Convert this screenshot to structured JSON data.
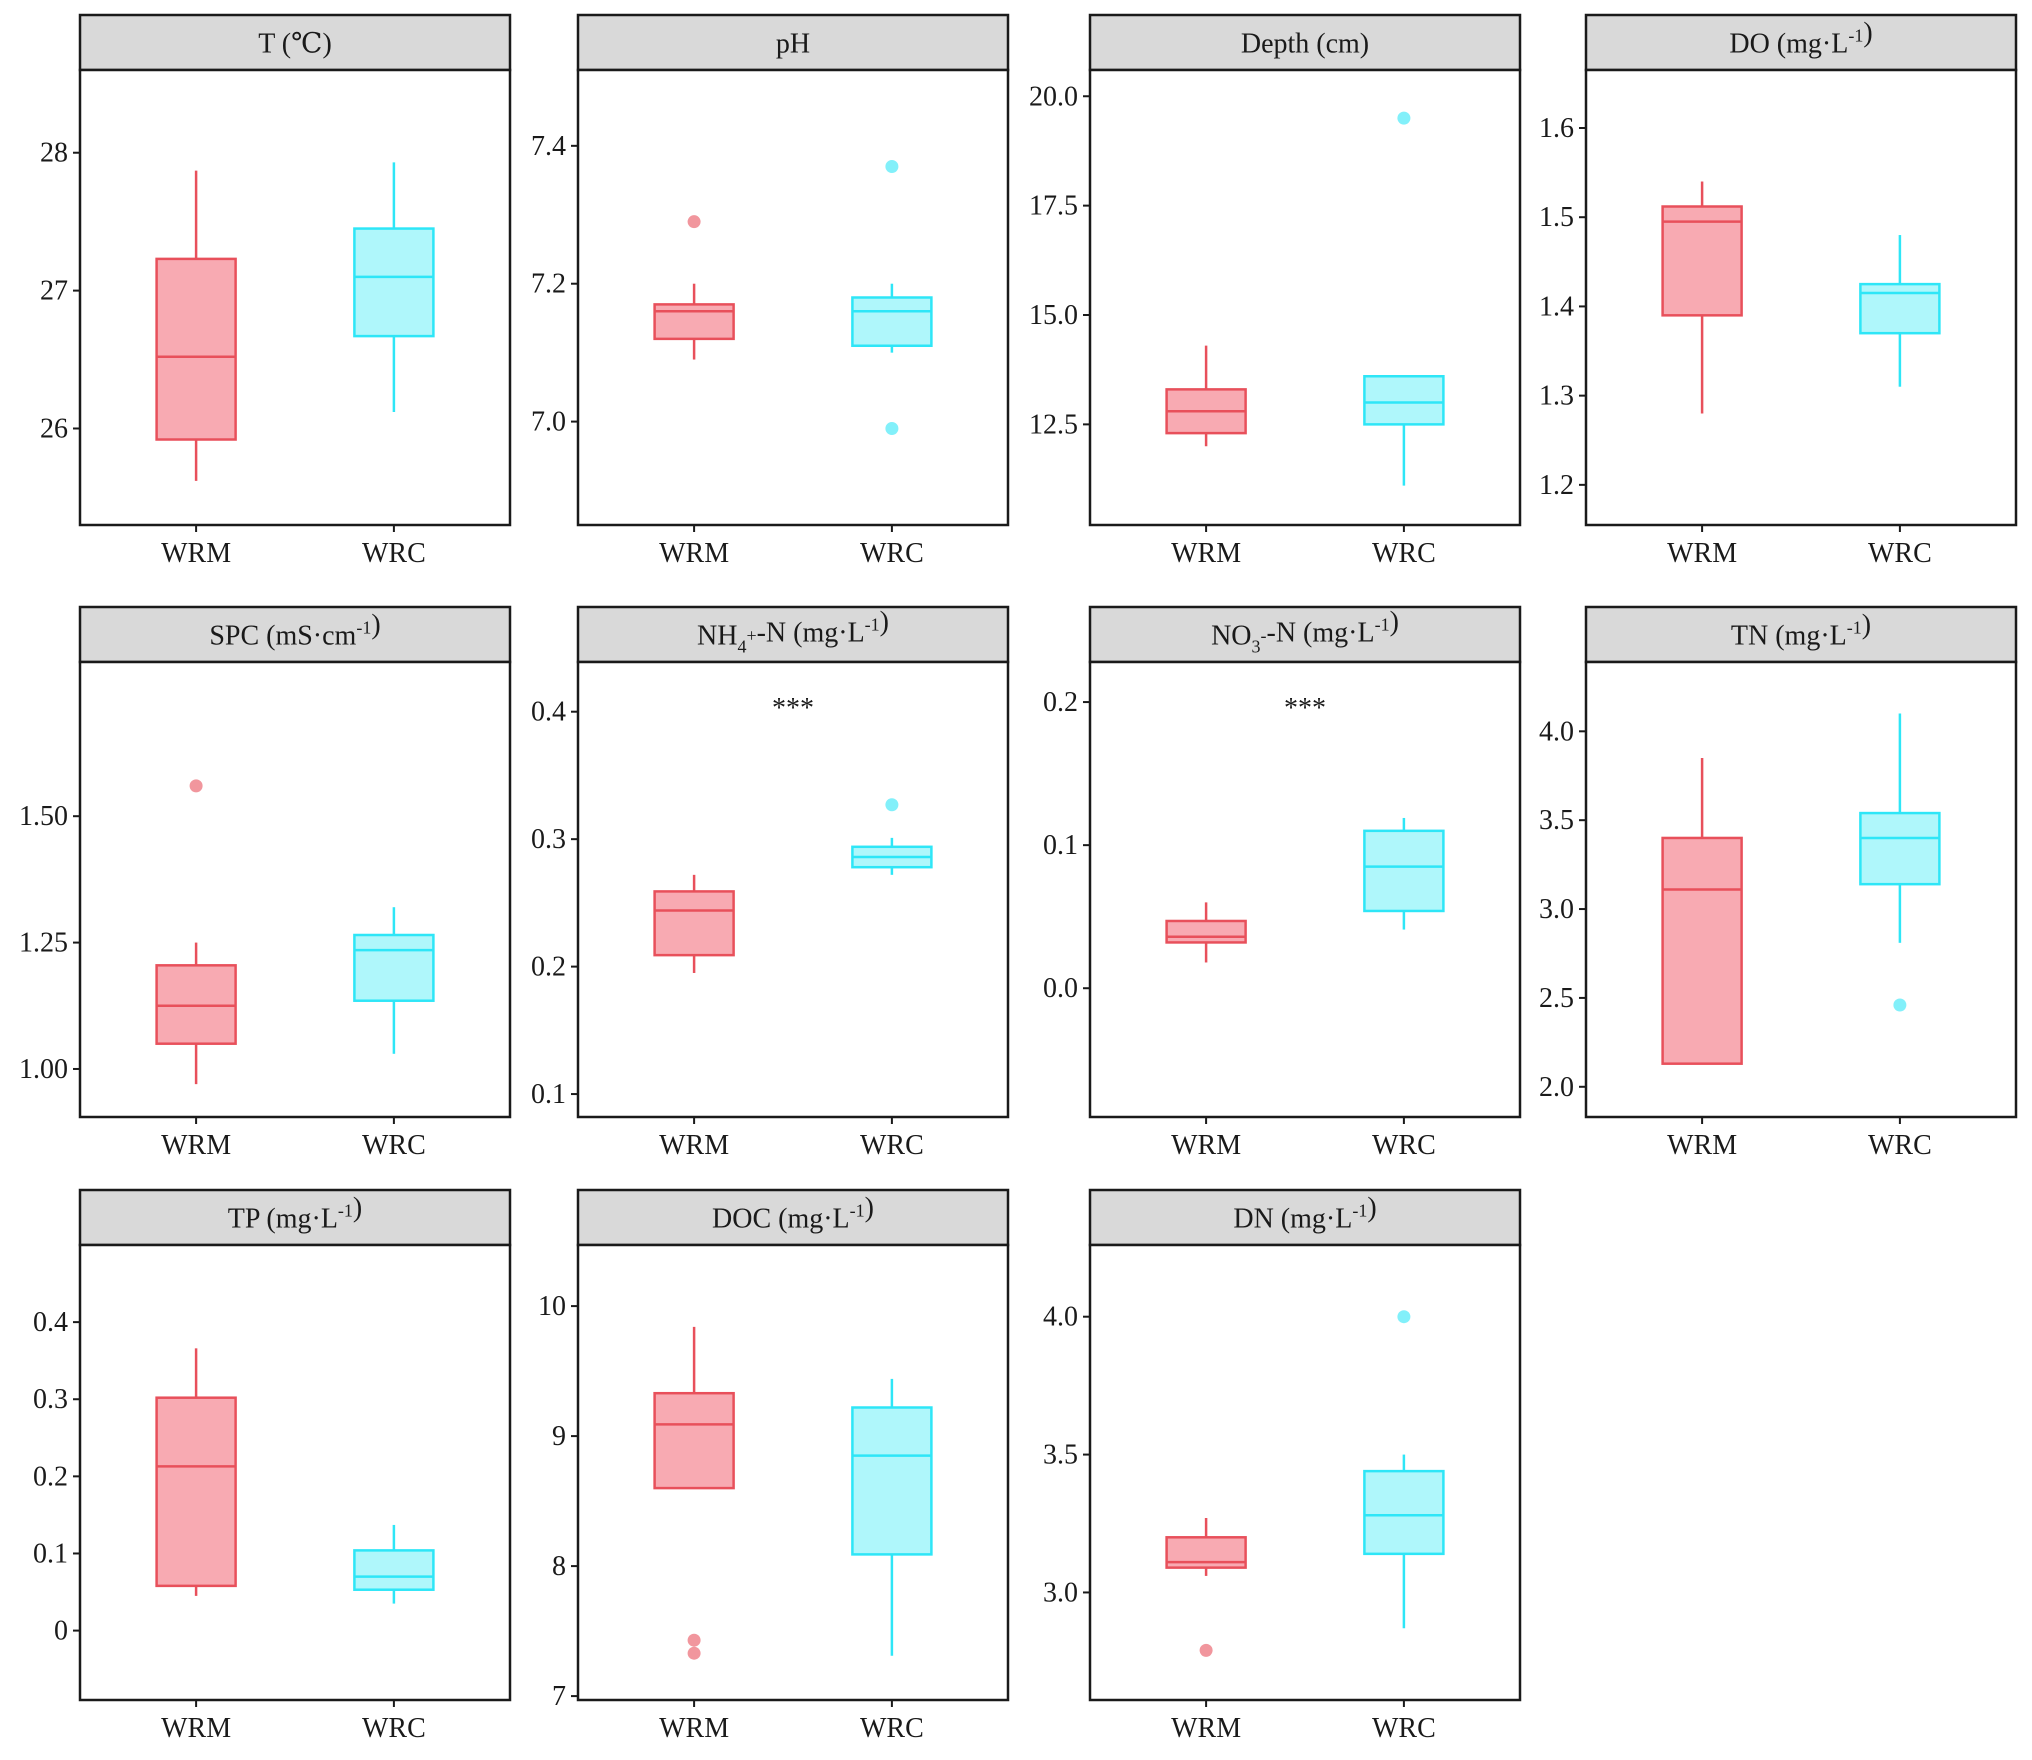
{
  "chart_data": [
    {
      "type": "boxplot",
      "title": "T (℃)",
      "title_parts": [
        {
          "t": "T (℃)"
        }
      ],
      "categories": [
        "WRM",
        "WRC"
      ],
      "ylim": [
        25.3,
        28.6
      ],
      "yticks": [
        26,
        27,
        28
      ],
      "ytick_labels": [
        "26",
        "27",
        "28"
      ],
      "significance": "",
      "boxes": [
        {
          "group": "WRM",
          "whisker_low": 25.62,
          "q1": 25.92,
          "median": 26.52,
          "q3": 27.23,
          "whisker_high": 27.87,
          "outliers": []
        },
        {
          "group": "WRC",
          "whisker_low": 26.12,
          "q1": 26.67,
          "median": 27.1,
          "q3": 27.45,
          "whisker_high": 27.93,
          "outliers": []
        }
      ]
    },
    {
      "type": "boxplot",
      "title": "pH",
      "title_parts": [
        {
          "t": "pH"
        }
      ],
      "categories": [
        "WRM",
        "WRC"
      ],
      "ylim": [
        6.85,
        7.51
      ],
      "yticks": [
        7.0,
        7.2,
        7.4
      ],
      "ytick_labels": [
        "7.0",
        "7.2",
        "7.4"
      ],
      "significance": "",
      "boxes": [
        {
          "group": "WRM",
          "whisker_low": 7.09,
          "q1": 7.12,
          "median": 7.16,
          "q3": 7.17,
          "whisker_high": 7.2,
          "outliers": [
            7.29
          ]
        },
        {
          "group": "WRC",
          "whisker_low": 7.1,
          "q1": 7.11,
          "median": 7.16,
          "q3": 7.18,
          "whisker_high": 7.2,
          "outliers": [
            7.37,
            6.99
          ]
        }
      ]
    },
    {
      "type": "boxplot",
      "title": "Depth (cm)",
      "title_parts": [
        {
          "t": "Depth (cm)"
        }
      ],
      "categories": [
        "WRM",
        "WRC"
      ],
      "ylim": [
        10.2,
        20.6
      ],
      "yticks": [
        12.5,
        15.0,
        17.5,
        20.0
      ],
      "ytick_labels": [
        "12.5",
        "15.0",
        "17.5",
        "20.0"
      ],
      "significance": "",
      "boxes": [
        {
          "group": "WRM",
          "whisker_low": 12.0,
          "q1": 12.3,
          "median": 12.8,
          "q3": 13.3,
          "whisker_high": 14.3,
          "outliers": []
        },
        {
          "group": "WRC",
          "whisker_low": 11.1,
          "q1": 12.5,
          "median": 13.0,
          "q3": 13.6,
          "whisker_high": 13.6,
          "outliers": [
            19.5
          ]
        }
      ]
    },
    {
      "type": "boxplot",
      "title": "DO (mg·L-1)",
      "title_parts": [
        {
          "t": "DO (mg·L"
        },
        {
          "t": "-1",
          "sup": true
        },
        {
          "t": ")"
        }
      ],
      "categories": [
        "WRM",
        "WRC"
      ],
      "ylim": [
        1.155,
        1.665
      ],
      "yticks": [
        1.2,
        1.3,
        1.4,
        1.5,
        1.6
      ],
      "ytick_labels": [
        "1.2",
        "1.3",
        "1.4",
        "1.5",
        "1.6"
      ],
      "significance": "",
      "boxes": [
        {
          "group": "WRM",
          "whisker_low": 1.28,
          "q1": 1.39,
          "median": 1.495,
          "q3": 1.512,
          "whisker_high": 1.54,
          "outliers": []
        },
        {
          "group": "WRC",
          "whisker_low": 1.31,
          "q1": 1.37,
          "median": 1.415,
          "q3": 1.425,
          "whisker_high": 1.48,
          "outliers": []
        }
      ]
    },
    {
      "type": "boxplot",
      "title": "SPC (mS·cm-1)",
      "title_parts": [
        {
          "t": "SPC (mS·cm"
        },
        {
          "t": "-1",
          "sup": true
        },
        {
          "t": ")"
        }
      ],
      "categories": [
        "WRM",
        "WRC"
      ],
      "ylim": [
        0.905,
        1.805
      ],
      "yticks": [
        1.0,
        1.25,
        1.5
      ],
      "ytick_labels": [
        "1.00",
        "1.25",
        "1.50"
      ],
      "significance": "",
      "boxes": [
        {
          "group": "WRM",
          "whisker_low": 0.97,
          "q1": 1.05,
          "median": 1.125,
          "q3": 1.205,
          "whisker_high": 1.25,
          "outliers": [
            1.56
          ]
        },
        {
          "group": "WRC",
          "whisker_low": 1.03,
          "q1": 1.135,
          "median": 1.235,
          "q3": 1.265,
          "whisker_high": 1.32,
          "outliers": []
        }
      ]
    },
    {
      "type": "boxplot",
      "title": "NH4+-N (mg·L-1)",
      "title_parts": [
        {
          "t": "NH"
        },
        {
          "t": "4",
          "sub": true
        },
        {
          "t": "+",
          "sup": true
        },
        {
          "t": "-N (mg·L"
        },
        {
          "t": "-1",
          "sup": true
        },
        {
          "t": ")"
        }
      ],
      "categories": [
        "WRM",
        "WRC"
      ],
      "ylim": [
        0.082,
        0.439
      ],
      "yticks": [
        0.1,
        0.2,
        0.3,
        0.4
      ],
      "ytick_labels": [
        "0.1",
        "0.2",
        "0.3",
        "0.4"
      ],
      "significance": "***",
      "boxes": [
        {
          "group": "WRM",
          "whisker_low": 0.195,
          "q1": 0.209,
          "median": 0.244,
          "q3": 0.259,
          "whisker_high": 0.272,
          "outliers": []
        },
        {
          "group": "WRC",
          "whisker_low": 0.272,
          "q1": 0.278,
          "median": 0.286,
          "q3": 0.294,
          "whisker_high": 0.301,
          "outliers": [
            0.327
          ]
        }
      ]
    },
    {
      "type": "boxplot",
      "title": "NO3--N (mg·L-1)",
      "title_parts": [
        {
          "t": "NO"
        },
        {
          "t": "3",
          "sub": true
        },
        {
          "t": "-",
          "sup": true
        },
        {
          "t": "-N (mg·L"
        },
        {
          "t": "-1",
          "sup": true
        },
        {
          "t": ")"
        }
      ],
      "categories": [
        "WRM",
        "WRC"
      ],
      "ylim": [
        -0.09,
        0.228
      ],
      "yticks": [
        0.0,
        0.1,
        0.2
      ],
      "ytick_labels": [
        "0.0",
        "0.1",
        "0.2"
      ],
      "significance": "***",
      "boxes": [
        {
          "group": "WRM",
          "whisker_low": 0.018,
          "q1": 0.032,
          "median": 0.036,
          "q3": 0.047,
          "whisker_high": 0.06,
          "outliers": []
        },
        {
          "group": "WRC",
          "whisker_low": 0.041,
          "q1": 0.054,
          "median": 0.085,
          "q3": 0.11,
          "whisker_high": 0.119,
          "outliers": []
        }
      ]
    },
    {
      "type": "boxplot",
      "title": "TN (mg·L-1)",
      "title_parts": [
        {
          "t": "TN (mg·L"
        },
        {
          "t": "-1",
          "sup": true
        },
        {
          "t": ")"
        }
      ],
      "categories": [
        "WRM",
        "WRC"
      ],
      "ylim": [
        1.83,
        4.39
      ],
      "yticks": [
        2.0,
        2.5,
        3.0,
        3.5,
        4.0
      ],
      "ytick_labels": [
        "2.0",
        "2.5",
        "3.0",
        "3.5",
        "4.0"
      ],
      "significance": "",
      "boxes": [
        {
          "group": "WRM",
          "whisker_low": 2.13,
          "q1": 2.13,
          "median": 3.11,
          "q3": 3.4,
          "whisker_high": 3.85,
          "outliers": []
        },
        {
          "group": "WRC",
          "whisker_low": 2.81,
          "q1": 3.14,
          "median": 3.4,
          "q3": 3.54,
          "whisker_high": 4.1,
          "outliers": [
            2.46
          ]
        }
      ]
    },
    {
      "type": "boxplot",
      "title": "TP (mg·L-1)",
      "title_parts": [
        {
          "t": "TP (mg·L"
        },
        {
          "t": "-1",
          "sup": true
        },
        {
          "t": ")"
        }
      ],
      "categories": [
        "WRM",
        "WRC"
      ],
      "ylim": [
        -0.09,
        0.5
      ],
      "yticks": [
        0,
        0.1,
        0.2,
        0.3,
        0.4
      ],
      "ytick_labels": [
        "0",
        "0.1",
        "0.2",
        "0.3",
        "0.4"
      ],
      "significance": "",
      "boxes": [
        {
          "group": "WRM",
          "whisker_low": 0.045,
          "q1": 0.058,
          "median": 0.213,
          "q3": 0.302,
          "whisker_high": 0.366,
          "outliers": []
        },
        {
          "group": "WRC",
          "whisker_low": 0.035,
          "q1": 0.053,
          "median": 0.07,
          "q3": 0.104,
          "whisker_high": 0.137,
          "outliers": []
        }
      ]
    },
    {
      "type": "boxplot",
      "title": "DOC (mg·L-1)",
      "title_parts": [
        {
          "t": "DOC (mg·L"
        },
        {
          "t": "-1",
          "sup": true
        },
        {
          "t": ")"
        }
      ],
      "categories": [
        "WRM",
        "WRC"
      ],
      "ylim": [
        6.97,
        10.47
      ],
      "yticks": [
        7,
        8,
        9,
        10
      ],
      "ytick_labels": [
        "7",
        "8",
        "9",
        "10"
      ],
      "significance": "",
      "boxes": [
        {
          "group": "WRM",
          "whisker_low": 8.6,
          "q1": 8.6,
          "median": 9.09,
          "q3": 9.33,
          "whisker_high": 9.84,
          "outliers": [
            7.43,
            7.33
          ]
        },
        {
          "group": "WRC",
          "whisker_low": 7.31,
          "q1": 8.09,
          "median": 8.85,
          "q3": 9.22,
          "whisker_high": 9.44,
          "outliers": []
        }
      ]
    },
    {
      "type": "boxplot",
      "title": "DN (mg·L-1)",
      "title_parts": [
        {
          "t": "DN (mg·L"
        },
        {
          "t": "-1",
          "sup": true
        },
        {
          "t": ")"
        }
      ],
      "categories": [
        "WRM",
        "WRC"
      ],
      "ylim": [
        2.61,
        4.26
      ],
      "yticks": [
        3.0,
        3.5,
        4.0
      ],
      "ytick_labels": [
        "3.0",
        "3.5",
        "4.0"
      ],
      "significance": "",
      "boxes": [
        {
          "group": "WRM",
          "whisker_low": 3.06,
          "q1": 3.09,
          "median": 3.11,
          "q3": 3.2,
          "whisker_high": 3.27,
          "outliers": [
            2.79
          ]
        },
        {
          "group": "WRC",
          "whisker_low": 2.87,
          "q1": 3.14,
          "median": 3.28,
          "q3": 3.44,
          "whisker_high": 3.5,
          "outliers": [
            4.0
          ]
        }
      ]
    }
  ],
  "colors": {
    "WRM_line": "#e8505b",
    "WRM_fill": "#f7a1aa",
    "WRC_line": "#2ee6f7",
    "WRC_fill": "#a6f6fb",
    "strip_fill": "#d9d9d9",
    "axis": "#1a1a1a"
  }
}
